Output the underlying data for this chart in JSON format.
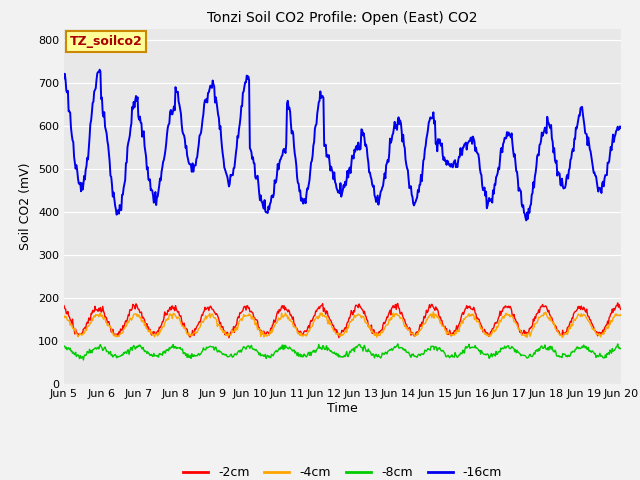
{
  "title": "Tonzi Soil CO2 Profile: Open (East) CO2",
  "ylabel": "Soil CO2 (mV)",
  "xlabel": "Time",
  "ylim": [
    0,
    825
  ],
  "yticks": [
    0,
    100,
    200,
    300,
    400,
    500,
    600,
    700,
    800
  ],
  "xlim": [
    0,
    15
  ],
  "blue_color": "#0000EE",
  "red_color": "#FF0000",
  "orange_color": "#FFA500",
  "green_color": "#00CC00",
  "legend_labels": [
    "-2cm",
    "-4cm",
    "-8cm",
    "-16cm"
  ],
  "legend_colors": [
    "#FF0000",
    "#FFA500",
    "#00CC00",
    "#0000EE"
  ],
  "annotation_text": "TZ_soilco2",
  "annotation_bg": "#FFFF99",
  "annotation_border": "#CC8800",
  "plot_bg_color": "#E8E8E8",
  "fig_bg_color": "#F2F2F2",
  "title_fontsize": 10,
  "axis_label_fontsize": 9,
  "tick_fontsize": 8,
  "legend_fontsize": 9,
  "linewidth_blue": 1.4,
  "linewidth_others": 1.0,
  "xtick_labels": [
    "Jun 5",
    "Jun 6",
    "Jun 7",
    "Jun 8",
    "Jun 9",
    "Jun 10",
    "Jun 11",
    "Jun 12",
    "Jun 13",
    "Jun 14",
    "Jun 15",
    "Jun 16",
    "Jun 17",
    "Jun 18",
    "Jun 19",
    "Jun 20"
  ],
  "xtick_positions": [
    0,
    1,
    2,
    3,
    4,
    5,
    6,
    7,
    8,
    9,
    10,
    11,
    12,
    13,
    14,
    15
  ]
}
